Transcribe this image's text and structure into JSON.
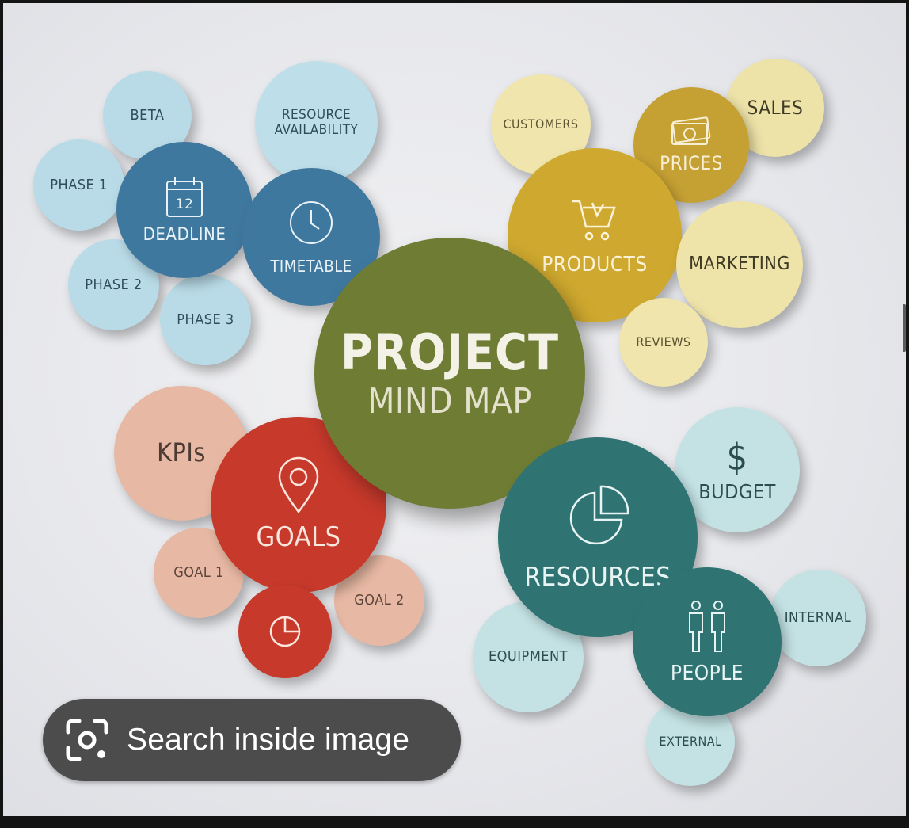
{
  "mind_map": {
    "center": {
      "line1": "PROJECT",
      "line2": "MIND MAP"
    },
    "top_left": {
      "beta": "BETA",
      "resource_availability": "RESOURCE\nAVAILABILITY",
      "phase1": "PHASE 1",
      "deadline": "DEADLINE",
      "calendar_day": "12",
      "timetable": "TIMETABLE",
      "phase2": "PHASE 2",
      "phase3": "PHASE 3"
    },
    "top_right": {
      "customers": "CUSTOMERS",
      "prices": "PRICES",
      "sales": "SALES",
      "products": "PRODUCTS",
      "marketing": "MARKETING",
      "reviews": "REVIEWS"
    },
    "bottom_left": {
      "kpis": "KPIs",
      "goals": "GOALS",
      "goal1": "GOAL 1",
      "goal2": "GOAL 2"
    },
    "bottom_right": {
      "budget": "BUDGET",
      "budget_symbol": "$",
      "resources": "RESOURCES",
      "internal": "INTERNAL",
      "equipment": "EQUIPMENT",
      "people": "PEOPLE",
      "external": "EXTERNAL"
    }
  },
  "search_button": {
    "label": "Search inside image",
    "icon": "lens-camera-icon"
  },
  "colors": {
    "light_blue": "#b7dbe8",
    "blue": "#3f779d",
    "olive": "#6f7b34",
    "mustard": "#cfa82e",
    "cream": "#eee3a9",
    "salmon": "#e6b7a2",
    "red": "#c4392a",
    "teal": "#2e7372",
    "pale_teal": "#c3e2e3",
    "pill": "#4c4c4c"
  }
}
